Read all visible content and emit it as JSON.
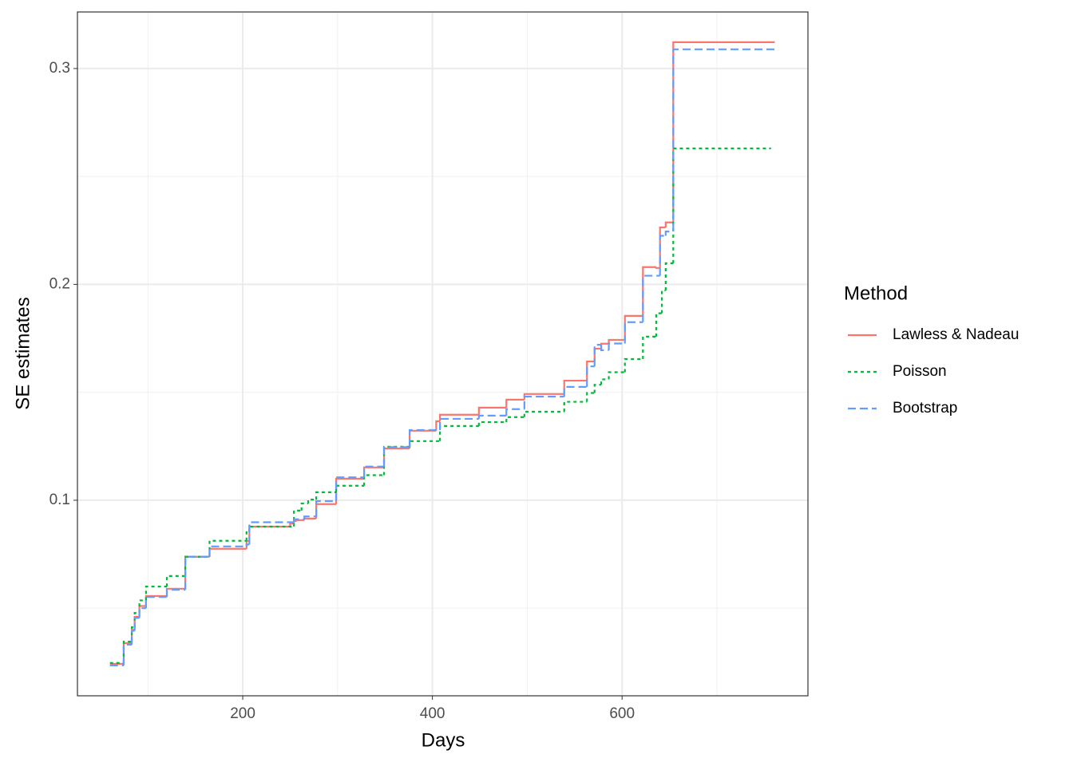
{
  "chart_data": {
    "type": "step",
    "x_label": "Days",
    "y_label": "SE estimates",
    "legend_title": "Method",
    "xlim": [
      25.7,
      796
    ],
    "ylim": [
      0.0094,
      0.3262
    ],
    "xticks": [
      200,
      400,
      600
    ],
    "yticks": [
      0.1,
      0.2,
      0.3
    ],
    "grid": true,
    "legend": "right",
    "series": [
      {
        "name": "Lawless & Nadeau",
        "color": "#F8766D",
        "dash": "solid",
        "x": [
          60,
          74.5,
          83,
          86,
          91,
          98,
          120,
          139.4,
          165,
          204,
          207,
          250,
          254,
          257,
          265,
          277.5,
          298.5,
          328,
          349,
          376,
          404,
          408,
          449,
          478,
          497,
          539,
          563,
          571,
          578,
          586,
          603,
          622,
          636,
          640,
          646,
          654,
          761
        ],
        "values": [
          0.0242,
          0.0338,
          0.04,
          0.046,
          0.051,
          0.0556,
          0.059,
          0.0738,
          0.0775,
          0.0811,
          0.0878,
          0.0893,
          0.0904,
          0.0908,
          0.0915,
          0.0982,
          0.11,
          0.1152,
          0.124,
          0.1322,
          0.1366,
          0.1396,
          0.1429,
          0.1466,
          0.1492,
          0.1554,
          0.1643,
          0.1702,
          0.1725,
          0.1743,
          0.1854,
          0.208,
          0.2076,
          0.2264,
          0.2287,
          0.3122,
          0.3122
        ]
      },
      {
        "name": "Poisson",
        "color": "#00BA38",
        "dash": "dotted",
        "x": [
          60,
          74.5,
          83,
          86,
          91,
          98,
          120,
          139.4,
          165,
          204,
          207,
          254,
          262,
          269,
          277.5,
          298.5,
          328,
          349,
          376,
          408,
          449,
          478,
          497,
          539,
          563,
          571,
          578,
          586,
          603,
          622,
          636,
          642,
          646,
          654,
          757
        ],
        "values": [
          0.0246,
          0.0345,
          0.0412,
          0.0478,
          0.0536,
          0.06,
          0.0649,
          0.0738,
          0.0812,
          0.0852,
          0.0878,
          0.0952,
          0.0985,
          0.1003,
          0.1037,
          0.1067,
          0.1116,
          0.1248,
          0.1274,
          0.1344,
          0.1362,
          0.1385,
          0.141,
          0.1456,
          0.1497,
          0.1535,
          0.156,
          0.1593,
          0.1654,
          0.1758,
          0.1866,
          0.1972,
          0.2098,
          0.263,
          0.263
        ]
      },
      {
        "name": "Bootstrap",
        "color": "#619CFF",
        "dash": "dashed",
        "x": [
          60,
          74.5,
          83,
          86,
          91,
          98,
          120,
          139.4,
          165,
          204,
          207,
          254,
          265,
          277.5,
          298.5,
          328,
          349,
          376,
          408,
          449,
          478,
          497,
          539,
          563,
          571,
          578,
          586,
          603,
          622,
          640,
          646,
          654,
          761
        ],
        "values": [
          0.0235,
          0.0331,
          0.0395,
          0.0455,
          0.05,
          0.0552,
          0.0585,
          0.0738,
          0.0786,
          0.0795,
          0.0898,
          0.0912,
          0.0925,
          0.0996,
          0.1106,
          0.1156,
          0.1246,
          0.1325,
          0.1377,
          0.1392,
          0.1422,
          0.148,
          0.1525,
          0.162,
          0.172,
          0.1695,
          0.1726,
          0.1825,
          0.204,
          0.2225,
          0.2245,
          0.3089,
          0.3089
        ]
      }
    ]
  }
}
